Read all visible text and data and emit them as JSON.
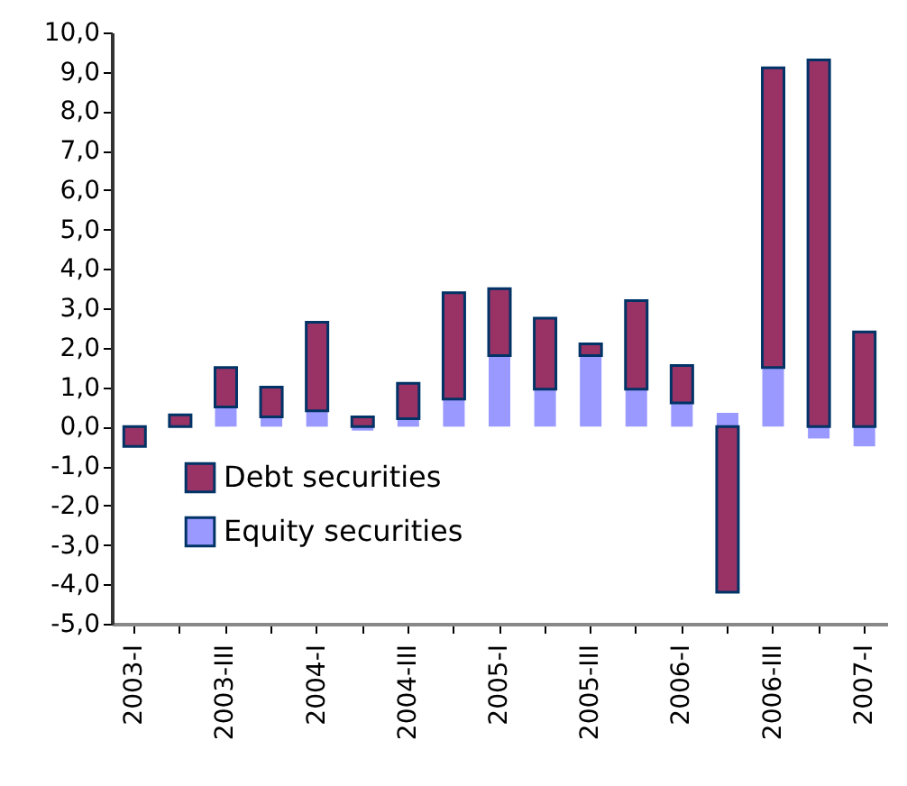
{
  "chart_data": {
    "type": "bar",
    "stacked": true,
    "categories": [
      "2003-I",
      null,
      "2003-III",
      null,
      "2004-I",
      null,
      "2004-III",
      null,
      "2005-I",
      null,
      "2005-III",
      null,
      "2006-I",
      null,
      "2006-III",
      null,
      "2007-I"
    ],
    "series": [
      {
        "name": "Equity securities",
        "color": "#9999ff",
        "values": [
          0,
          0,
          0.5,
          0.25,
          0.4,
          -0.1,
          0.2,
          0.7,
          1.8,
          0.95,
          1.8,
          0.95,
          0.6,
          0.35,
          1.5,
          -0.3,
          -0.5
        ]
      },
      {
        "name": "Debt securities",
        "color": "#993366",
        "values": [
          -0.5,
          0.3,
          1.0,
          0.75,
          2.25,
          0.25,
          0.9,
          2.7,
          1.7,
          1.8,
          0.3,
          2.25,
          0.95,
          -4.2,
          7.6,
          9.3,
          2.4
        ]
      }
    ],
    "ylim": [
      -5,
      10
    ],
    "yticks": [
      {
        "value": -5,
        "label": "-5,0"
      },
      {
        "value": -4,
        "label": "-4,0"
      },
      {
        "value": -3,
        "label": "-3,0"
      },
      {
        "value": -2,
        "label": "-2,0"
      },
      {
        "value": -1,
        "label": "-1,0"
      },
      {
        "value": 0,
        "label": "0,0"
      },
      {
        "value": 1,
        "label": "1,0"
      },
      {
        "value": 2,
        "label": "2,0"
      },
      {
        "value": 3,
        "label": "3,0"
      },
      {
        "value": 4,
        "label": "4,0"
      },
      {
        "value": 5,
        "label": "5,0"
      },
      {
        "value": 6,
        "label": "6,0"
      },
      {
        "value": 7,
        "label": "7,0"
      },
      {
        "value": 8,
        "label": "8,0"
      },
      {
        "value": 9,
        "label": "9,0"
      },
      {
        "value": 10,
        "label": "10,0"
      }
    ],
    "legend": "bottom left"
  }
}
